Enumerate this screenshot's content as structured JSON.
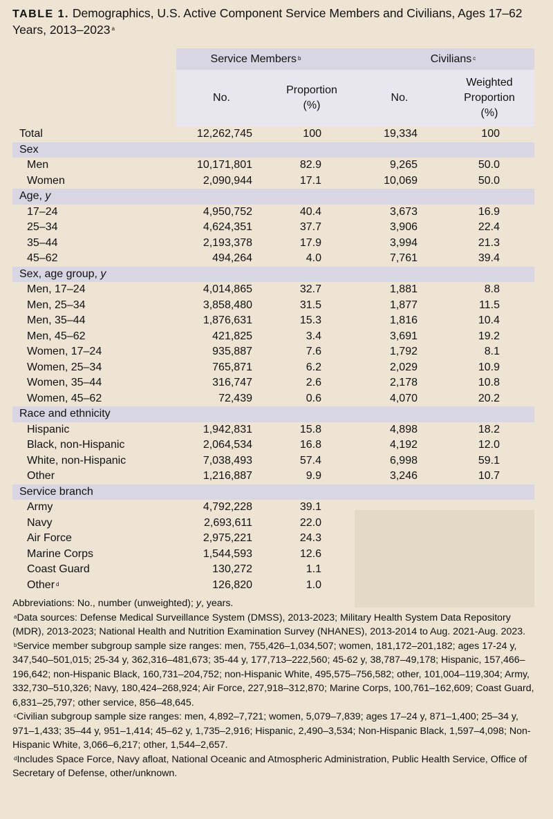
{
  "title": {
    "label": "TABLE 1.",
    "text": "Demographics, U.S. Active Component Service Members and Civilians, Ages 17–62 Years, 2013–2023",
    "note": "a"
  },
  "header": {
    "service_members": "Service Members",
    "service_members_note": "b",
    "civilians": "Civilians",
    "civilians_note": "c",
    "sm_no": "No.",
    "sm_prop_line1": "Proportion",
    "sm_prop_line2": "(%)",
    "civ_no": "No.",
    "civ_wprop_line1": "Weighted",
    "civ_wprop_line2": "Proportion",
    "civ_wprop_line3": "(%)"
  },
  "total": {
    "label": "Total",
    "sm_no": "12,262,745",
    "sm_pct": "100",
    "civ_no": "19,334",
    "civ_pct": "100"
  },
  "sections": [
    {
      "title": "Sex",
      "title_italic": "",
      "rows": [
        {
          "label": "Men",
          "sm_no": "10,171,801",
          "sm_pct": "82.9",
          "civ_no": "9,265",
          "civ_pct": "50.0"
        },
        {
          "label": "Women",
          "sm_no": "2,090,944",
          "sm_pct": "17.1",
          "civ_no": "10,069",
          "civ_pct": "50.0"
        }
      ]
    },
    {
      "title": "Age, ",
      "title_italic": "y",
      "rows": [
        {
          "label": "17–24",
          "sm_no": "4,950,752",
          "sm_pct": "40.4",
          "civ_no": "3,673",
          "civ_pct": "16.9"
        },
        {
          "label": "25–34",
          "sm_no": "4,624,351",
          "sm_pct": "37.7",
          "civ_no": "3,906",
          "civ_pct": "22.4"
        },
        {
          "label": "35–44",
          "sm_no": "2,193,378",
          "sm_pct": "17.9",
          "civ_no": "3,994",
          "civ_pct": "21.3"
        },
        {
          "label": "45–62",
          "sm_no": "494,264",
          "sm_pct": "4.0",
          "civ_no": "7,761",
          "civ_pct": "39.4"
        }
      ]
    },
    {
      "title": "Sex, age group, ",
      "title_italic": "y",
      "rows": [
        {
          "label": "Men, 17–24",
          "sm_no": "4,014,865",
          "sm_pct": "32.7",
          "civ_no": "1,881",
          "civ_pct": "8.8"
        },
        {
          "label": "Men, 25–34",
          "sm_no": "3,858,480",
          "sm_pct": "31.5",
          "civ_no": "1,877",
          "civ_pct": "11.5"
        },
        {
          "label": "Men, 35–44",
          "sm_no": "1,876,631",
          "sm_pct": "15.3",
          "civ_no": "1,816",
          "civ_pct": "10.4"
        },
        {
          "label": "Men, 45–62",
          "sm_no": "421,825",
          "sm_pct": "3.4",
          "civ_no": "3,691",
          "civ_pct": "19.2"
        },
        {
          "label": "Women, 17–24",
          "sm_no": "935,887",
          "sm_pct": "7.6",
          "civ_no": "1,792",
          "civ_pct": "8.1"
        },
        {
          "label": "Women, 25–34",
          "sm_no": "765,871",
          "sm_pct": "6.2",
          "civ_no": "2,029",
          "civ_pct": "10.9"
        },
        {
          "label": "Women, 35–44",
          "sm_no": "316,747",
          "sm_pct": "2.6",
          "civ_no": "2,178",
          "civ_pct": "10.8"
        },
        {
          "label": "Women, 45–62",
          "sm_no": "72,439",
          "sm_pct": "0.6",
          "civ_no": "4,070",
          "civ_pct": "20.2"
        }
      ]
    },
    {
      "title": "Race and ethnicity",
      "title_italic": "",
      "rows": [
        {
          "label": "Hispanic",
          "sm_no": "1,942,831",
          "sm_pct": "15.8",
          "civ_no": "4,898",
          "civ_pct": "18.2"
        },
        {
          "label": "Black, non-Hispanic",
          "sm_no": "2,064,534",
          "sm_pct": "16.8",
          "civ_no": "4,192",
          "civ_pct": "12.0"
        },
        {
          "label": "White, non-Hispanic",
          "sm_no": "7,038,493",
          "sm_pct": "57.4",
          "civ_no": "6,998",
          "civ_pct": "59.1"
        },
        {
          "label": "Other",
          "sm_no": "1,216,887",
          "sm_pct": "9.9",
          "civ_no": "3,246",
          "civ_pct": "10.7"
        }
      ]
    },
    {
      "title": "Service branch",
      "title_italic": "",
      "rows": [
        {
          "label": "Army",
          "sm_no": "4,792,228",
          "sm_pct": "39.1",
          "civ_no": "",
          "civ_pct": ""
        },
        {
          "label": "Navy",
          "sm_no": "2,693,611",
          "sm_pct": "22.0",
          "civ_no": "",
          "civ_pct": ""
        },
        {
          "label": "Air Force",
          "sm_no": "2,975,221",
          "sm_pct": "24.3",
          "civ_no": "",
          "civ_pct": ""
        },
        {
          "label": "Marine Corps",
          "sm_no": "1,544,593",
          "sm_pct": "12.6",
          "civ_no": "",
          "civ_pct": ""
        },
        {
          "label": "Coast Guard",
          "sm_no": "130,272",
          "sm_pct": "1.1",
          "civ_no": "",
          "civ_pct": ""
        },
        {
          "label": "Other",
          "label_note": "d",
          "sm_no": "126,820",
          "sm_pct": "1.0",
          "civ_no": "",
          "civ_pct": ""
        }
      ]
    }
  ],
  "footnotes": {
    "abbrev_pre": "Abbreviations: No., number (unweighted); ",
    "abbrev_italic": "y",
    "abbrev_post": ", years.",
    "a_mark": "a",
    "a_text": "Data sources: Defense Medical Surveillance System (DMSS), 2013-2023; Military Health System Data Repository (MDR), 2013-2023; National Health and Nutrition Examination Survey (NHANES), 2013-2014 to Aug. 2021-Aug. 2023.",
    "b_mark": "b",
    "b_text": "Service member subgroup sample size ranges: men, 755,426–1,034,507; women, 181,172–201,182; ages 17-24 y, 347,540–501,015; 25-34 y, 362,316–481,673; 35-44 y, 177,713–222,560; 45-62 y, 38,787–49,178; Hispanic, 157,466–196,642; non-Hispanic Black, 160,731–204,752; non-Hispanic White, 495,575–756,582; other, 101,004–119,304; Army, 332,730–510,326; Navy, 180,424–268,924; Air Force, 227,918–312,870; Marine Corps, 100,761–162,609; Coast Guard, 6,831–25,797; other service, 856–48,645.",
    "c_mark": "c",
    "c_text": "Civilian subgroup sample size ranges: men, 4,892–7,721; women, 5,079–7,839; ages 17–24 y, 871–1,400; 25–34 y, 971–1,433; 35–44 y, 951–1,414; 45–62 y, 1,735–2,916; Hispanic, 2,490–3,534; Non-Hispanic Black, 1,597–4,098; Non-Hispanic White, 3,066–6,217; other, 1,544–2,657.",
    "d_mark": "d",
    "d_text": "Includes Space Force, Navy afloat, National Oceanic and Atmospheric Administration, Public Health Service, Office of Secretary of Defense, other/unknown."
  }
}
